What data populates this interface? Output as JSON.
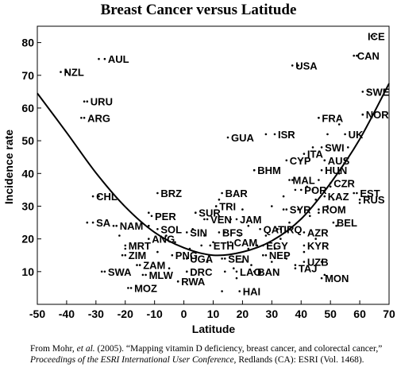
{
  "citation": {
    "prefix": "From Mohr, ",
    "etal": "et al.",
    "middle": " (2005). “Mapping vitamin D deficiency, breast cancer, and colorectal cancer,” ",
    "proceedings": "Proceedings of the ESRI International User Conference,",
    "suffix": " Redlands (CA): ESRI (Vol. 1468)."
  },
  "chart_data": {
    "type": "scatter",
    "title": "Breast Cancer versus Latitude",
    "xlabel": "Latitude",
    "ylabel": "Incidence rate",
    "xlim": [
      -50,
      70
    ],
    "ylim": [
      0,
      85
    ],
    "xticks": [
      -50,
      -40,
      -30,
      -20,
      -10,
      0,
      10,
      20,
      30,
      40,
      50,
      60,
      70
    ],
    "yticks": [
      10,
      20,
      30,
      40,
      50,
      60,
      70,
      80
    ],
    "grid": false,
    "legend": "none",
    "fit_curve": {
      "type": "quadratic",
      "points": [
        [
          -50,
          64.5
        ],
        [
          -40,
          52.5
        ],
        [
          -30,
          40.2
        ],
        [
          -20,
          29.8
        ],
        [
          -10,
          22.0
        ],
        [
          0,
          17.3
        ],
        [
          10,
          15.0
        ],
        [
          20,
          16.0
        ],
        [
          30,
          19.4
        ],
        [
          40,
          26.1
        ],
        [
          50,
          37.0
        ],
        [
          60,
          50.5
        ],
        [
          70,
          67.5
        ]
      ]
    },
    "labeled_points": [
      {
        "label": "ICE",
        "x": 64,
        "y": 82
      },
      {
        "label": "CAN",
        "x": 58,
        "y": 76
      },
      {
        "label": "USA",
        "x": 37,
        "y": 73
      },
      {
        "label": "AUL",
        "x": -27,
        "y": 75
      },
      {
        "label": "NZL",
        "x": -42,
        "y": 71
      },
      {
        "label": "SWE",
        "x": 61,
        "y": 65
      },
      {
        "label": "NOR",
        "x": 61,
        "y": 58
      },
      {
        "label": "URU",
        "x": -33,
        "y": 62
      },
      {
        "label": "ARG",
        "x": -34,
        "y": 57
      },
      {
        "label": "FRA",
        "x": 46,
        "y": 57
      },
      {
        "label": "ISR",
        "x": 31,
        "y": 52
      },
      {
        "label": "GUA",
        "x": 15,
        "y": 51
      },
      {
        "label": "UK",
        "x": 55,
        "y": 52
      },
      {
        "label": "SWI",
        "x": 47,
        "y": 48
      },
      {
        "label": "ITA",
        "x": 41,
        "y": 46
      },
      {
        "label": "AUS",
        "x": 48,
        "y": 44
      },
      {
        "label": "CYP",
        "x": 35,
        "y": 44
      },
      {
        "label": "BHM",
        "x": 24,
        "y": 41
      },
      {
        "label": "HUN",
        "x": 47,
        "y": 41
      },
      {
        "label": "MAL",
        "x": 36,
        "y": 38
      },
      {
        "label": "CZR",
        "x": 50,
        "y": 37
      },
      {
        "label": "POR",
        "x": 40,
        "y": 35
      },
      {
        "label": "EST",
        "x": 59,
        "y": 34
      },
      {
        "label": "BRZ",
        "x": -9,
        "y": 34
      },
      {
        "label": "BAR",
        "x": 13,
        "y": 34
      },
      {
        "label": "KAZ",
        "x": 48,
        "y": 33
      },
      {
        "label": "CHL",
        "x": -31,
        "y": 33
      },
      {
        "label": "RUS",
        "x": 60,
        "y": 32
      },
      {
        "label": "TRI",
        "x": 11,
        "y": 30
      },
      {
        "label": "ROM",
        "x": 46,
        "y": 29
      },
      {
        "label": "SYR",
        "x": 35,
        "y": 29
      },
      {
        "label": "SUR",
        "x": 4,
        "y": 28
      },
      {
        "label": "PER",
        "x": -11,
        "y": 27
      },
      {
        "label": "VEN",
        "x": 8,
        "y": 26
      },
      {
        "label": "JAM",
        "x": 18,
        "y": 26
      },
      {
        "label": "SA",
        "x": -31,
        "y": 25
      },
      {
        "label": "BEL",
        "x": 51,
        "y": 25
      },
      {
        "label": "NAM",
        "x": -23,
        "y": 24
      },
      {
        "label": "SOL",
        "x": -9,
        "y": 23
      },
      {
        "label": "QAT",
        "x": 26,
        "y": 23
      },
      {
        "label": "IRQ",
        "x": 33,
        "y": 23
      },
      {
        "label": "SIN",
        "x": 1,
        "y": 22
      },
      {
        "label": "BFS",
        "x": 12,
        "y": 22
      },
      {
        "label": "AZR",
        "x": 41,
        "y": 22
      },
      {
        "label": "ANG",
        "x": -12,
        "y": 20
      },
      {
        "label": "CAM",
        "x": 16,
        "y": 19
      },
      {
        "label": "MRT",
        "x": -20,
        "y": 18
      },
      {
        "label": "ETH",
        "x": 9,
        "y": 18
      },
      {
        "label": "EGY",
        "x": 27,
        "y": 18
      },
      {
        "label": "KYR",
        "x": 41,
        "y": 18
      },
      {
        "label": "ZIM",
        "x": -20,
        "y": 15
      },
      {
        "label": "PNG",
        "x": -4,
        "y": 15
      },
      {
        "label": "NEP",
        "x": 28,
        "y": 15
      },
      {
        "label": "SEN",
        "x": 14,
        "y": 14
      },
      {
        "label": "UGA",
        "x": 1,
        "y": 14
      },
      {
        "label": "UZB",
        "x": 41,
        "y": 13
      },
      {
        "label": "ZAM",
        "x": -15,
        "y": 12
      },
      {
        "label": "TAJ",
        "x": 38,
        "y": 11
      },
      {
        "label": "LAO",
        "x": 18,
        "y": 10
      },
      {
        "label": "BAN",
        "x": 24,
        "y": 10
      },
      {
        "label": "DRC",
        "x": 1,
        "y": 10
      },
      {
        "label": "SWA",
        "x": -27,
        "y": 10
      },
      {
        "label": "MLW",
        "x": -13,
        "y": 9
      },
      {
        "label": "MON",
        "x": 47,
        "y": 8
      },
      {
        "label": "RWA",
        "x": -2,
        "y": 7
      },
      {
        "label": "MOZ",
        "x": -18,
        "y": 5
      },
      {
        "label": "HAI",
        "x": 19,
        "y": 4
      }
    ],
    "unlabeled_points": [
      [
        -40,
        71
      ],
      [
        -34,
        62
      ],
      [
        -35,
        57
      ],
      [
        -29,
        75
      ],
      [
        -29,
        33
      ],
      [
        -33,
        25
      ],
      [
        -24,
        24
      ],
      [
        -22,
        21
      ],
      [
        -20,
        17
      ],
      [
        -21,
        15
      ],
      [
        -16,
        12
      ],
      [
        -28,
        10
      ],
      [
        -14,
        9
      ],
      [
        -19,
        5
      ],
      [
        -12,
        24
      ],
      [
        -12,
        28
      ],
      [
        -9,
        16
      ],
      [
        -6,
        21
      ],
      [
        -5,
        11
      ],
      [
        -3,
        19
      ],
      [
        -2,
        7
      ],
      [
        0,
        14
      ],
      [
        1,
        10
      ],
      [
        2,
        17
      ],
      [
        3,
        23
      ],
      [
        4,
        28
      ],
      [
        6,
        18
      ],
      [
        7,
        21
      ],
      [
        7,
        26
      ],
      [
        8,
        13
      ],
      [
        10,
        19
      ],
      [
        11,
        30
      ],
      [
        12,
        32
      ],
      [
        13,
        14
      ],
      [
        13,
        4
      ],
      [
        14,
        10
      ],
      [
        14,
        22
      ],
      [
        15,
        19
      ],
      [
        16,
        26
      ],
      [
        17,
        11
      ],
      [
        18,
        8
      ],
      [
        19,
        21
      ],
      [
        20,
        29
      ],
      [
        20,
        13
      ],
      [
        22,
        17
      ],
      [
        22,
        24
      ],
      [
        23,
        12
      ],
      [
        24,
        41
      ],
      [
        25,
        18
      ],
      [
        26,
        10
      ],
      [
        27,
        15
      ],
      [
        28,
        21
      ],
      [
        28,
        52
      ],
      [
        30,
        30
      ],
      [
        30,
        13
      ],
      [
        31,
        17
      ],
      [
        32,
        23
      ],
      [
        33,
        20
      ],
      [
        34,
        29
      ],
      [
        34,
        33
      ],
      [
        35,
        14
      ],
      [
        36,
        25
      ],
      [
        37,
        38
      ],
      [
        38,
        35
      ],
      [
        38,
        12
      ],
      [
        39,
        73
      ],
      [
        39,
        29
      ],
      [
        40,
        44
      ],
      [
        41,
        16
      ],
      [
        42,
        36
      ],
      [
        43,
        27
      ],
      [
        44,
        35
      ],
      [
        44,
        48
      ],
      [
        45,
        32
      ],
      [
        45,
        20
      ],
      [
        46,
        57
      ],
      [
        46,
        38
      ],
      [
        46,
        28
      ],
      [
        47,
        13
      ],
      [
        48,
        9
      ],
      [
        48,
        44
      ],
      [
        49,
        30
      ],
      [
        49,
        52
      ],
      [
        50,
        36
      ],
      [
        51,
        32
      ],
      [
        52,
        24
      ],
      [
        53,
        40
      ],
      [
        53,
        55
      ],
      [
        55,
        44
      ],
      [
        56,
        48
      ],
      [
        58,
        34
      ],
      [
        59,
        76
      ],
      [
        60,
        31
      ],
      [
        61,
        58
      ],
      [
        63,
        65
      ],
      [
        65,
        82
      ]
    ]
  }
}
